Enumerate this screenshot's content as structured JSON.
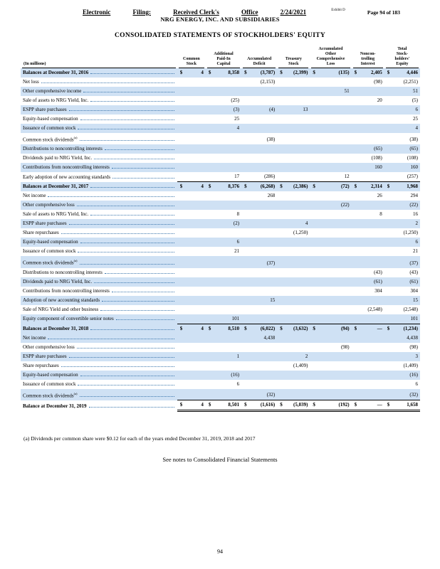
{
  "colors": {
    "row_shade": "#cfe1f4",
    "leader_dot": "#3c77ad"
  },
  "stamp": {
    "words": [
      "Electronic",
      "Filing:",
      "Received Clerk's",
      "Office",
      "2/24/2021"
    ],
    "exhibit": "Exhibit D",
    "page_info": "Page  94 of 183"
  },
  "header": {
    "company": "NRG ENERGY, INC. AND SUBSIDIARIES",
    "title": "CONSOLIDATED STATEMENTS OF STOCKHOLDERS' EQUITY"
  },
  "table": {
    "in_millions_label": "(In millions)",
    "columns": [
      "Common\nStock",
      "Additional\nPaid-In\nCapital",
      "Accumulated\nDeficit",
      "Treasury\nStock",
      "Accumulated\nOther\nComprehensive\nLoss",
      "Noncon-\ntrolling\nInterest",
      "Total\nStock-\nholders'\nEquity"
    ],
    "rows": [
      {
        "label": "Balances at December 31, 2016",
        "note": "",
        "shaded": true,
        "balance": true,
        "final": false,
        "values": [
          "4",
          "8,358",
          "(3,787)",
          "(2,399)",
          "(135)",
          "2,405",
          "4,446"
        ]
      },
      {
        "label": "Net loss",
        "note": "",
        "shaded": false,
        "balance": false,
        "final": false,
        "values": [
          "",
          "",
          "(2,153)",
          "",
          "",
          "(98)",
          "(2,251)"
        ]
      },
      {
        "label": "Other comprehensive income",
        "note": "",
        "shaded": true,
        "balance": false,
        "final": false,
        "values": [
          "",
          "",
          "",
          "",
          "51",
          "",
          "51"
        ]
      },
      {
        "label": "Sale of assets to NRG Yield, Inc.",
        "note": "",
        "shaded": false,
        "balance": false,
        "final": false,
        "values": [
          "",
          "(25)",
          "",
          "",
          "",
          "20",
          "(5)"
        ]
      },
      {
        "label": "ESPP share purchases",
        "note": "",
        "shaded": true,
        "balance": false,
        "final": false,
        "values": [
          "",
          "(3)",
          "(4)",
          "13",
          "",
          "",
          "6"
        ]
      },
      {
        "label": "Equity-based compensation",
        "note": "",
        "shaded": false,
        "balance": false,
        "final": false,
        "values": [
          "",
          "25",
          "",
          "",
          "",
          "",
          "25"
        ]
      },
      {
        "label": "Issuance of common stock",
        "note": "",
        "shaded": true,
        "balance": false,
        "final": false,
        "values": [
          "",
          "4",
          "",
          "",
          "",
          "",
          "4"
        ]
      },
      {
        "label": "Common stock dividends",
        "note": "(a)",
        "shaded": false,
        "balance": false,
        "final": false,
        "values": [
          "",
          "",
          "(38)",
          "",
          "",
          "",
          "(38)"
        ]
      },
      {
        "label": "Distributions to noncontrolling interests",
        "note": "",
        "shaded": true,
        "balance": false,
        "final": false,
        "values": [
          "",
          "",
          "",
          "",
          "",
          "(65)",
          "(65)"
        ]
      },
      {
        "label": "Dividends paid to NRG Yield, Inc.",
        "note": "",
        "shaded": false,
        "balance": false,
        "final": false,
        "values": [
          "",
          "",
          "",
          "",
          "",
          "(108)",
          "(108)"
        ]
      },
      {
        "label": "Contributions from noncontrolling interests",
        "note": "",
        "shaded": true,
        "balance": false,
        "final": false,
        "values": [
          "",
          "",
          "",
          "",
          "",
          "160",
          "160"
        ]
      },
      {
        "label": "Early adoption of new accounting standards",
        "note": "",
        "shaded": false,
        "balance": false,
        "final": false,
        "values": [
          "",
          "17",
          "(286)",
          "",
          "12",
          "",
          "(257)"
        ]
      },
      {
        "label": "Balances at December 31, 2017",
        "note": "",
        "shaded": true,
        "balance": true,
        "final": false,
        "values": [
          "4",
          "8,376",
          "(6,268)",
          "(2,386)",
          "(72)",
          "2,314",
          "1,968"
        ]
      },
      {
        "label": "Net income",
        "note": "",
        "shaded": false,
        "balance": false,
        "final": false,
        "values": [
          "",
          "",
          "268",
          "",
          "",
          "26",
          "294"
        ]
      },
      {
        "label": "Other comprehensive loss",
        "note": "",
        "shaded": true,
        "balance": false,
        "final": false,
        "values": [
          "",
          "",
          "",
          "",
          "(22)",
          "",
          "(22)"
        ]
      },
      {
        "label": "Sale of assets to NRG Yield, Inc.",
        "note": "",
        "shaded": false,
        "balance": false,
        "final": false,
        "values": [
          "",
          "8",
          "",
          "",
          "",
          "8",
          "16"
        ]
      },
      {
        "label": "ESPP share purchases",
        "note": "",
        "shaded": true,
        "balance": false,
        "final": false,
        "values": [
          "",
          "(2)",
          "",
          "4",
          "",
          "",
          "2"
        ]
      },
      {
        "label": "Share repurchases",
        "note": "",
        "shaded": false,
        "balance": false,
        "final": false,
        "values": [
          "",
          "",
          "",
          "(1,250)",
          "",
          "",
          "(1,250)"
        ]
      },
      {
        "label": "Equity-based compensation",
        "note": "",
        "shaded": true,
        "balance": false,
        "final": false,
        "values": [
          "",
          "6",
          "",
          "",
          "",
          "",
          "6"
        ]
      },
      {
        "label": "Issuance of common stock",
        "note": "",
        "shaded": false,
        "balance": false,
        "final": false,
        "values": [
          "",
          "21",
          "",
          "",
          "",
          "",
          "21"
        ]
      },
      {
        "label": "Common stock dividends",
        "note": "(a)",
        "shaded": true,
        "balance": false,
        "final": false,
        "values": [
          "",
          "",
          "(37)",
          "",
          "",
          "",
          "(37)"
        ]
      },
      {
        "label": "Distributions to noncontrolling interests",
        "note": "",
        "shaded": false,
        "balance": false,
        "final": false,
        "values": [
          "",
          "",
          "",
          "",
          "",
          "(43)",
          "(43)"
        ]
      },
      {
        "label": "Dividends paid to NRG Yield, Inc.",
        "note": "",
        "shaded": true,
        "balance": false,
        "final": false,
        "values": [
          "",
          "",
          "",
          "",
          "",
          "(61)",
          "(61)"
        ]
      },
      {
        "label": "Contributions from noncontrolling interests",
        "note": "",
        "shaded": false,
        "balance": false,
        "final": false,
        "values": [
          "",
          "",
          "",
          "",
          "",
          "304",
          "304"
        ]
      },
      {
        "label": "Adoption of new accounting standards",
        "note": "",
        "shaded": true,
        "balance": false,
        "final": false,
        "values": [
          "",
          "",
          "15",
          "",
          "",
          "",
          "15"
        ]
      },
      {
        "label": "Sale of NRG Yield and other business",
        "note": "",
        "shaded": false,
        "balance": false,
        "final": false,
        "values": [
          "",
          "",
          "",
          "",
          "",
          "(2,548)",
          "(2,548)"
        ]
      },
      {
        "label": "Equity component of convertible senior notes",
        "note": "",
        "shaded": true,
        "balance": false,
        "final": false,
        "values": [
          "",
          "101",
          "",
          "",
          "",
          "",
          "101"
        ]
      },
      {
        "label": "Balances at December 31, 2018",
        "note": "",
        "shaded": true,
        "balance": true,
        "final": false,
        "values": [
          "4",
          "8,510",
          "(6,022)",
          "(3,632)",
          "(94)",
          "—",
          "(1,234)"
        ]
      },
      {
        "label": "Net income",
        "note": "",
        "shaded": true,
        "balance": false,
        "final": false,
        "values": [
          "",
          "",
          "4,438",
          "",
          "",
          "",
          "4,438"
        ]
      },
      {
        "label": "Other comprehensive loss",
        "note": "",
        "shaded": false,
        "balance": false,
        "final": false,
        "values": [
          "",
          "",
          "",
          "",
          "(98)",
          "",
          "(98)"
        ]
      },
      {
        "label": "ESPP share purchases",
        "note": "",
        "shaded": true,
        "balance": false,
        "final": false,
        "values": [
          "",
          "1",
          "",
          "2",
          "",
          "",
          "3"
        ]
      },
      {
        "label": "Share repurchases",
        "note": "",
        "shaded": false,
        "balance": false,
        "final": false,
        "values": [
          "",
          "",
          "",
          "(1,409)",
          "",
          "",
          "(1,409)"
        ]
      },
      {
        "label": "Equity-based compensation",
        "note": "",
        "shaded": true,
        "balance": false,
        "final": false,
        "values": [
          "",
          "(16)",
          "",
          "",
          "",
          "",
          "(16)"
        ]
      },
      {
        "label": "Issuance of common stock",
        "note": "",
        "shaded": false,
        "balance": false,
        "final": false,
        "values": [
          "",
          "6",
          "",
          "",
          "",
          "",
          "6"
        ]
      },
      {
        "label": "Common stock dividends",
        "note": "(a)",
        "shaded": true,
        "balance": false,
        "final": false,
        "values": [
          "",
          "",
          "(32)",
          "",
          "",
          "",
          "(32)"
        ]
      },
      {
        "label": "Balance at December 31, 2019",
        "note": "",
        "shaded": false,
        "balance": true,
        "final": true,
        "values": [
          "4",
          "8,501",
          "(1,616)",
          "(5,039)",
          "(192)",
          "—",
          "1,658"
        ]
      }
    ]
  },
  "footnote": "(a) Dividends per common share were $0.12 for each of the years ended December 31, 2019, 2018 and 2017",
  "see_notes": "See notes to Consolidated Financial Statements",
  "page_number": "94"
}
